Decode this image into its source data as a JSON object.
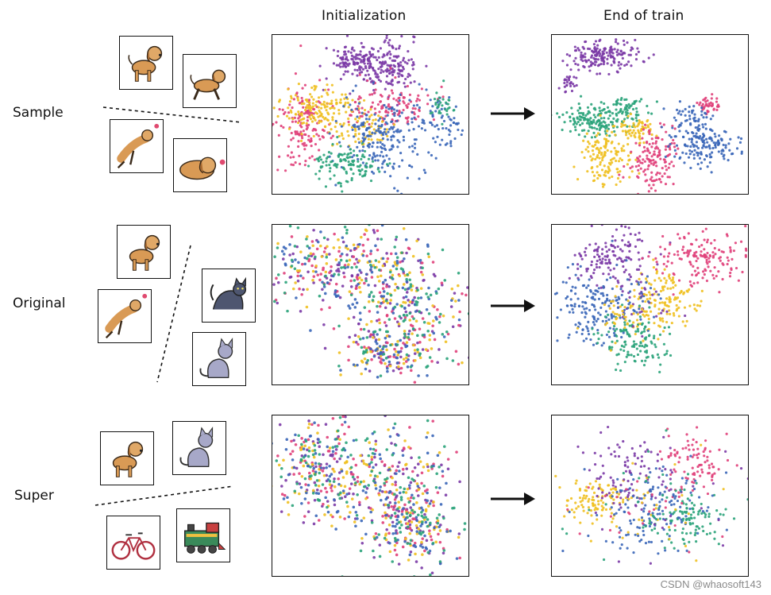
{
  "columns": {
    "init_title": "Initialization",
    "end_title": "End of train"
  },
  "rows": [
    {
      "label": "Sample",
      "icons": [
        "dog-standing",
        "dog-walking",
        "dog-jumping-ball",
        "dog-chasing-ball"
      ]
    },
    {
      "label": "Original",
      "icons": [
        "dog-standing",
        "dog-jumping-ball",
        "cat-arched",
        "cat-sitting"
      ]
    },
    {
      "label": "Super",
      "icons": [
        "dog-standing",
        "cat-sitting",
        "bicycle",
        "train"
      ]
    }
  ],
  "colors": {
    "purple": "#7b3aa6",
    "pink": "#e0407a",
    "yellow": "#f0c020",
    "blue": "#3a66b8",
    "green": "#2aa37a"
  },
  "watermark": "CSDN @whaosoft143"
}
